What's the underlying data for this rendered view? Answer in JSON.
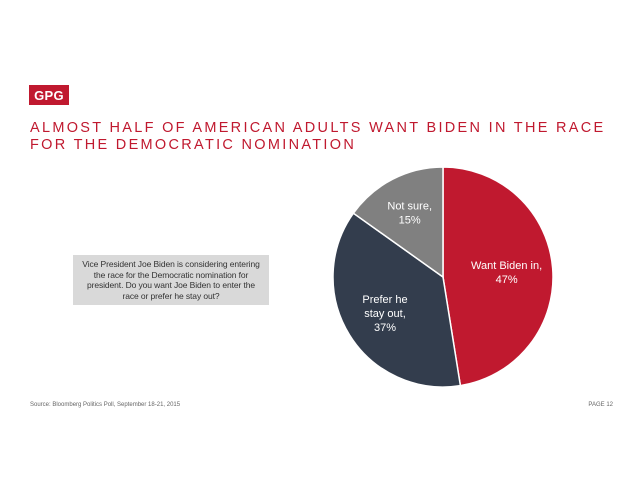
{
  "logo": {
    "text": "GPG"
  },
  "title": "ALMOST HALF OF AMERICAN ADULTS WANT BIDEN IN THE RACE FOR THE DEMOCRATIC NOMINATION",
  "question": "Vice President Joe Biden is considering entering the race for the Democratic nomination for president. Do you want Joe Biden to enter the race or prefer he stay out?",
  "footer": {
    "source": "Source: Bloomberg Politics Poll, September 18-21, 2015",
    "page": "PAGE 12"
  },
  "colors": {
    "brand_red": "#c0192f",
    "navy": "#333d4d",
    "gray": "#808080"
  },
  "chart_data": {
    "type": "pie",
    "title": "",
    "slices": [
      {
        "name": "Want Biden in,",
        "value": 47,
        "label": "47%",
        "color": "#c0192f"
      },
      {
        "name": "Prefer he stay out,",
        "value": 37,
        "label": "37%",
        "color": "#333d4d"
      },
      {
        "name": "Not sure,",
        "value": 15,
        "label": "15%",
        "color": "#808080"
      }
    ]
  }
}
